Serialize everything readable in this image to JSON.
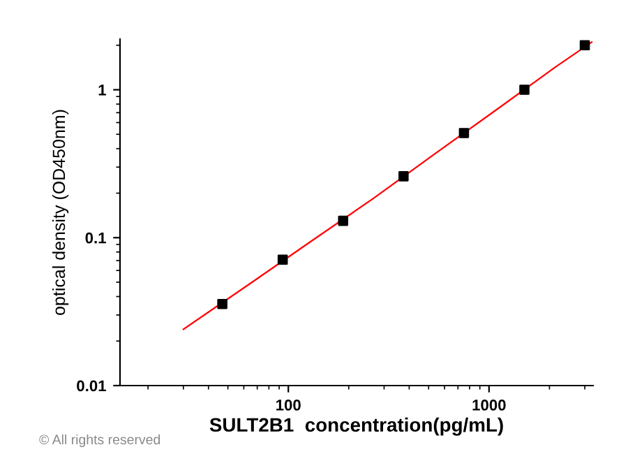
{
  "chart_data": {
    "type": "scatter",
    "xlabel": "SULT2B1  concentration(pg/mL)",
    "ylabel": "optical density (OD450nm)",
    "log": "xy",
    "xlim": [
      14.5,
      3300
    ],
    "ylim": [
      0.01,
      2.2
    ],
    "xticks": [
      100,
      1000
    ],
    "yticks": [
      0.01,
      0.1,
      1
    ],
    "marker": "square",
    "grid": false,
    "legend": false,
    "series": [
      {
        "color": "#000000",
        "x": [
          46.9,
          93.75,
          187.5,
          375,
          750,
          1500,
          3000
        ],
        "values": [
          0.0356,
          0.071,
          0.13,
          0.26,
          0.51,
          1.0,
          2.0
        ]
      },
      {
        "type": "line",
        "color": "#ff0000",
        "marker": "none",
        "x": [
          30,
          66,
          132,
          265,
          530,
          1060,
          2120,
          3250
        ],
        "values": [
          0.024,
          0.05,
          0.096,
          0.184,
          0.364,
          0.714,
          1.41,
          2.1
        ]
      }
    ],
    "annotations": [
      "© All rights reserved"
    ]
  }
}
